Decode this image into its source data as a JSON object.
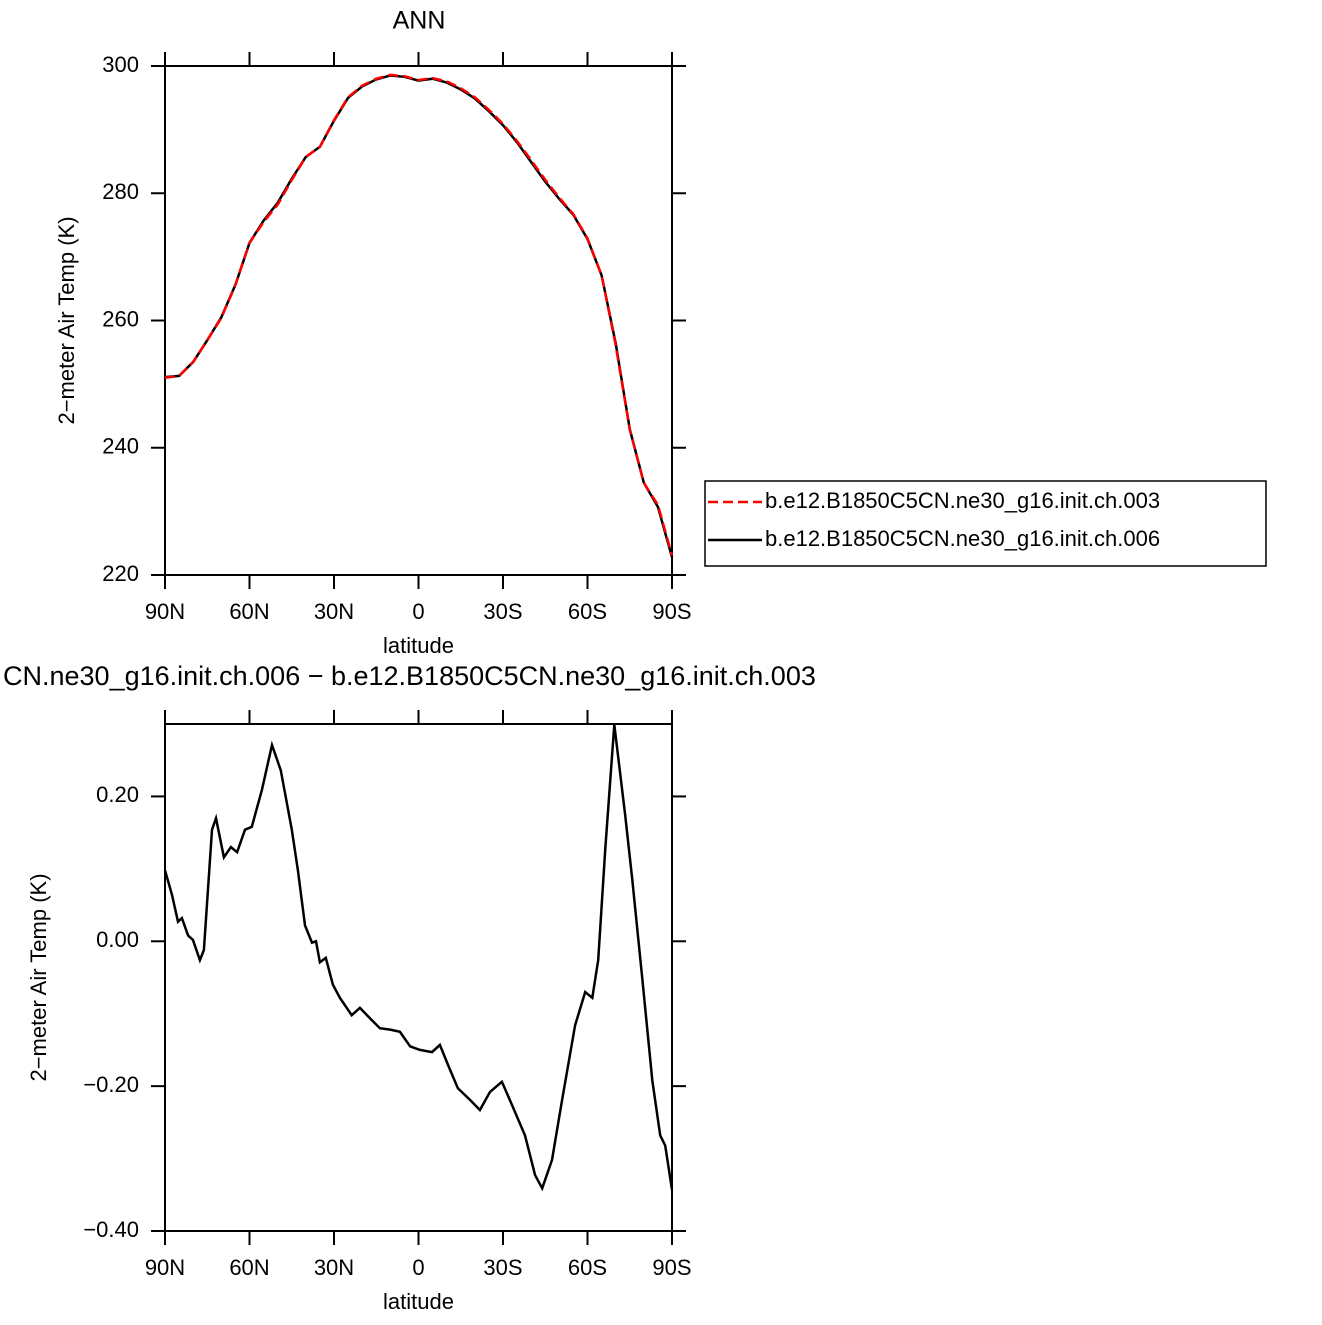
{
  "chart_data": [
    {
      "type": "line",
      "title": "ANN",
      "x_label": "latitude",
      "y_label": "2−meter Air Temp (K)",
      "x": [
        90,
        85,
        80,
        75,
        70,
        65,
        60,
        55,
        50,
        45,
        40,
        35,
        30,
        25,
        20,
        15,
        10,
        5,
        0,
        -5,
        -10,
        -15,
        -20,
        -25,
        -30,
        -35,
        -40,
        -45,
        -50,
        -55,
        -60,
        -65,
        -70,
        -75,
        -80,
        -85,
        -90
      ],
      "series": [
        {
          "name": "b.e12.B1850C5CN.ne30_g16.init.ch.003",
          "color": "#ff0000",
          "dashed": true,
          "values": [
            251.0,
            251.3,
            253.5,
            256.9,
            260.4,
            265.6,
            272.2,
            275.5,
            278.2,
            282.1,
            285.7,
            287.3,
            291.5,
            295.1,
            296.9,
            298.0,
            298.6,
            298.4,
            297.8,
            298.1,
            297.6,
            296.5,
            295.1,
            293.1,
            290.9,
            288.2,
            285.2,
            282.1,
            279.3,
            276.7,
            272.9,
            267.1,
            256.1,
            242.8,
            234.5,
            231.0,
            223.1
          ]
        },
        {
          "name": "b.e12.B1850C5CN.ne30_g16.init.ch.006",
          "color": "#000000",
          "dashed": false,
          "values": [
            251.1,
            251.3,
            253.5,
            256.9,
            260.5,
            265.6,
            272.2,
            275.7,
            278.5,
            282.3,
            285.7,
            287.3,
            291.4,
            295.0,
            296.8,
            297.9,
            298.5,
            298.3,
            297.7,
            298.0,
            297.4,
            296.3,
            294.9,
            292.9,
            290.7,
            288.0,
            284.9,
            281.8,
            279.1,
            276.6,
            272.8,
            267.1,
            256.4,
            242.9,
            234.5,
            230.7,
            222.8
          ]
        }
      ],
      "xlim": [
        90,
        -90
      ],
      "xticks": [
        {
          "value": 90,
          "label": "90N"
        },
        {
          "value": 60,
          "label": "60N"
        },
        {
          "value": 30,
          "label": "30N"
        },
        0,
        {
          "value": -30,
          "label": "30S"
        },
        {
          "value": -60,
          "label": "60S"
        },
        {
          "value": -90,
          "label": "90S"
        }
      ],
      "ylim": [
        220,
        300
      ],
      "yticks": [
        220,
        240,
        260,
        280,
        300
      ],
      "legend": "right"
    },
    {
      "type": "line",
      "title": "CN.ne30_g16.init.ch.006 − b.e12.B1850C5CN.ne30_g16.init.ch.003",
      "x_label": "latitude",
      "y_label": "2−meter Air Temp (K)",
      "x": [
        90,
        87.5,
        85.4,
        84.0,
        81.8,
        80.1,
        77.6,
        76.2,
        73.3,
        71.9,
        69.1,
        66.6,
        64.4,
        61.6,
        59.2,
        55.6,
        52.0,
        48.9,
        45.0,
        42.8,
        40.3,
        37.8,
        36.4,
        35.0,
        32.9,
        30.4,
        27.9,
        23.7,
        20.8,
        17.3,
        13.7,
        10.1,
        6.6,
        3.0,
        -0.5,
        -4.8,
        -7.6,
        -10.5,
        -14.0,
        -18.3,
        -21.8,
        -25.4,
        -29.6,
        -33.2,
        -37.8,
        -41.4,
        -43.9,
        -47.4,
        -51.0,
        -55.6,
        -59.2,
        -61.7,
        -63.8,
        -66.3,
        -69.5,
        -73.4,
        -75.9,
        -79.5,
        -83.0,
        -85.8,
        -87.6,
        -90
      ],
      "values": [
        0.098,
        0.064,
        0.027,
        0.032,
        0.008,
        0.002,
        -0.026,
        -0.012,
        0.154,
        0.17,
        0.116,
        0.13,
        0.123,
        0.154,
        0.158,
        0.209,
        0.271,
        0.236,
        0.154,
        0.098,
        0.022,
        -0.002,
        0.0,
        -0.029,
        -0.023,
        -0.06,
        -0.078,
        -0.102,
        -0.092,
        -0.106,
        -0.12,
        -0.122,
        -0.125,
        -0.145,
        -0.15,
        -0.153,
        -0.143,
        -0.171,
        -0.203,
        -0.219,
        -0.233,
        -0.208,
        -0.194,
        -0.226,
        -0.268,
        -0.323,
        -0.341,
        -0.302,
        -0.219,
        -0.116,
        -0.07,
        -0.078,
        -0.026,
        0.126,
        0.299,
        0.174,
        0.085,
        -0.053,
        -0.192,
        -0.268,
        -0.282,
        -0.343
      ],
      "color": "#000000",
      "xlim": [
        90,
        -90
      ],
      "xticks": [
        {
          "value": 90,
          "label": "90N"
        },
        {
          "value": 60,
          "label": "60N"
        },
        {
          "value": 30,
          "label": "30N"
        },
        0,
        {
          "value": -30,
          "label": "30S"
        },
        {
          "value": -60,
          "label": "60S"
        },
        {
          "value": -90,
          "label": "90S"
        }
      ],
      "ylim": [
        -0.4,
        0.3
      ],
      "yticks": [
        {
          "value": -0.4,
          "label": "−0.40"
        },
        {
          "value": -0.2,
          "label": "−0.20"
        },
        {
          "value": 0,
          "label": "0.00"
        },
        {
          "value": 0.2,
          "label": "0.20"
        }
      ]
    }
  ]
}
